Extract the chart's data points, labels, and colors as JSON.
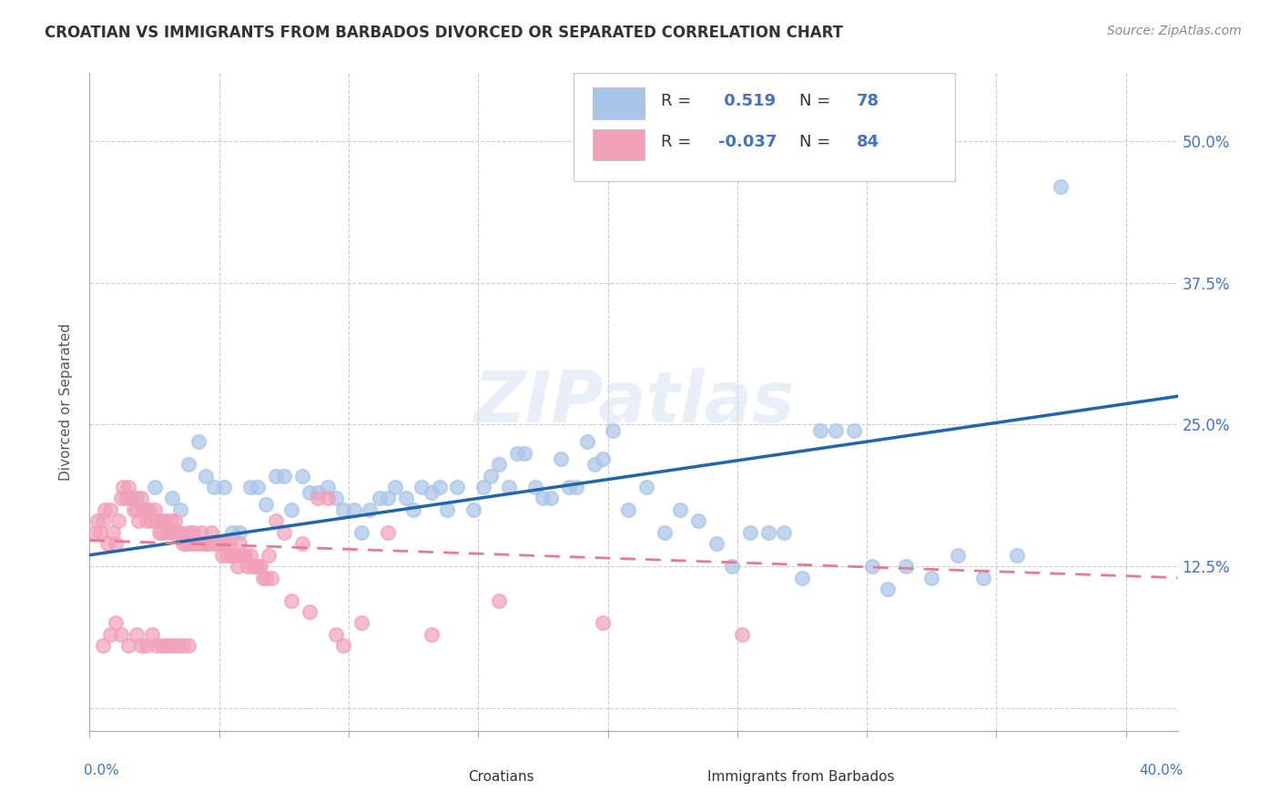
{
  "title": "CROATIAN VS IMMIGRANTS FROM BARBADOS DIVORCED OR SEPARATED CORRELATION CHART",
  "source": "Source: ZipAtlas.com",
  "ylabel": "Divorced or Separated",
  "blue_R": 0.519,
  "blue_N": 78,
  "pink_R": -0.037,
  "pink_N": 84,
  "blue_color": "#a8c4e8",
  "pink_color": "#f2a0b8",
  "blue_line_color": "#2166ac",
  "pink_line_color": "#e87a90",
  "watermark": "ZIPatlas",
  "xlim": [
    0.0,
    0.42
  ],
  "ylim": [
    -0.02,
    0.56
  ],
  "ytick_values": [
    0.0,
    0.125,
    0.25,
    0.375,
    0.5
  ],
  "ytick_labels": [
    "",
    "12.5%",
    "25.0%",
    "37.5%",
    "50.0%"
  ],
  "blue_line_x": [
    0.0,
    0.42
  ],
  "blue_line_y": [
    0.135,
    0.275
  ],
  "pink_line_x": [
    0.0,
    0.42
  ],
  "pink_line_y": [
    0.148,
    0.115
  ],
  "blue_scatter_x": [
    0.018,
    0.022,
    0.025,
    0.028,
    0.032,
    0.035,
    0.038,
    0.042,
    0.045,
    0.048,
    0.052,
    0.055,
    0.058,
    0.062,
    0.065,
    0.068,
    0.072,
    0.075,
    0.078,
    0.082,
    0.085,
    0.088,
    0.092,
    0.095,
    0.098,
    0.102,
    0.105,
    0.108,
    0.112,
    0.115,
    0.118,
    0.122,
    0.125,
    0.128,
    0.132,
    0.135,
    0.138,
    0.142,
    0.148,
    0.152,
    0.155,
    0.158,
    0.162,
    0.165,
    0.168,
    0.172,
    0.175,
    0.178,
    0.182,
    0.185,
    0.188,
    0.192,
    0.195,
    0.198,
    0.202,
    0.208,
    0.215,
    0.222,
    0.228,
    0.235,
    0.242,
    0.248,
    0.255,
    0.262,
    0.268,
    0.275,
    0.282,
    0.288,
    0.295,
    0.302,
    0.308,
    0.315,
    0.325,
    0.335,
    0.345,
    0.358,
    0.375
  ],
  "blue_scatter_y": [
    0.185,
    0.175,
    0.195,
    0.165,
    0.185,
    0.175,
    0.215,
    0.235,
    0.205,
    0.195,
    0.195,
    0.155,
    0.155,
    0.195,
    0.195,
    0.18,
    0.205,
    0.205,
    0.175,
    0.205,
    0.19,
    0.19,
    0.195,
    0.185,
    0.175,
    0.175,
    0.155,
    0.175,
    0.185,
    0.185,
    0.195,
    0.185,
    0.175,
    0.195,
    0.19,
    0.195,
    0.175,
    0.195,
    0.175,
    0.195,
    0.205,
    0.215,
    0.195,
    0.225,
    0.225,
    0.195,
    0.185,
    0.185,
    0.22,
    0.195,
    0.195,
    0.235,
    0.215,
    0.22,
    0.245,
    0.175,
    0.195,
    0.155,
    0.175,
    0.165,
    0.145,
    0.125,
    0.155,
    0.155,
    0.155,
    0.115,
    0.245,
    0.245,
    0.245,
    0.125,
    0.105,
    0.125,
    0.115,
    0.135,
    0.115,
    0.135,
    0.46
  ],
  "pink_scatter_x": [
    0.002,
    0.003,
    0.004,
    0.005,
    0.006,
    0.007,
    0.008,
    0.009,
    0.01,
    0.011,
    0.012,
    0.013,
    0.014,
    0.015,
    0.016,
    0.017,
    0.018,
    0.019,
    0.02,
    0.021,
    0.022,
    0.023,
    0.024,
    0.025,
    0.026,
    0.027,
    0.028,
    0.029,
    0.03,
    0.031,
    0.032,
    0.033,
    0.034,
    0.035,
    0.036,
    0.037,
    0.038,
    0.039,
    0.04,
    0.041,
    0.042,
    0.043,
    0.044,
    0.045,
    0.046,
    0.047,
    0.048,
    0.049,
    0.05,
    0.051,
    0.052,
    0.053,
    0.054,
    0.055,
    0.056,
    0.057,
    0.058,
    0.059,
    0.06,
    0.061,
    0.062,
    0.063,
    0.064,
    0.065,
    0.066,
    0.067,
    0.068,
    0.069,
    0.07,
    0.072,
    0.075,
    0.078,
    0.082,
    0.085,
    0.088,
    0.092,
    0.095,
    0.098,
    0.105,
    0.115,
    0.132,
    0.158,
    0.198,
    0.252
  ],
  "pink_scatter_y": [
    0.155,
    0.165,
    0.155,
    0.165,
    0.175,
    0.145,
    0.175,
    0.155,
    0.145,
    0.165,
    0.185,
    0.195,
    0.185,
    0.195,
    0.185,
    0.175,
    0.175,
    0.165,
    0.185,
    0.175,
    0.165,
    0.175,
    0.165,
    0.175,
    0.165,
    0.155,
    0.155,
    0.165,
    0.155,
    0.165,
    0.155,
    0.165,
    0.155,
    0.155,
    0.145,
    0.145,
    0.155,
    0.145,
    0.155,
    0.145,
    0.145,
    0.155,
    0.145,
    0.145,
    0.145,
    0.155,
    0.145,
    0.145,
    0.145,
    0.135,
    0.145,
    0.135,
    0.145,
    0.135,
    0.135,
    0.125,
    0.145,
    0.135,
    0.135,
    0.125,
    0.135,
    0.125,
    0.125,
    0.125,
    0.125,
    0.115,
    0.115,
    0.135,
    0.115,
    0.165,
    0.155,
    0.095,
    0.145,
    0.085,
    0.185,
    0.185,
    0.065,
    0.055,
    0.075,
    0.155,
    0.065,
    0.095,
    0.075,
    0.065
  ],
  "extra_pink_x": [
    0.005,
    0.008,
    0.01,
    0.012,
    0.015,
    0.018,
    0.02,
    0.022,
    0.024,
    0.026,
    0.028,
    0.03,
    0.032,
    0.034,
    0.036,
    0.038
  ],
  "extra_pink_y": [
    0.055,
    0.065,
    0.075,
    0.065,
    0.055,
    0.065,
    0.055,
    0.055,
    0.065,
    0.055,
    0.055,
    0.055,
    0.055,
    0.055,
    0.055,
    0.055
  ]
}
